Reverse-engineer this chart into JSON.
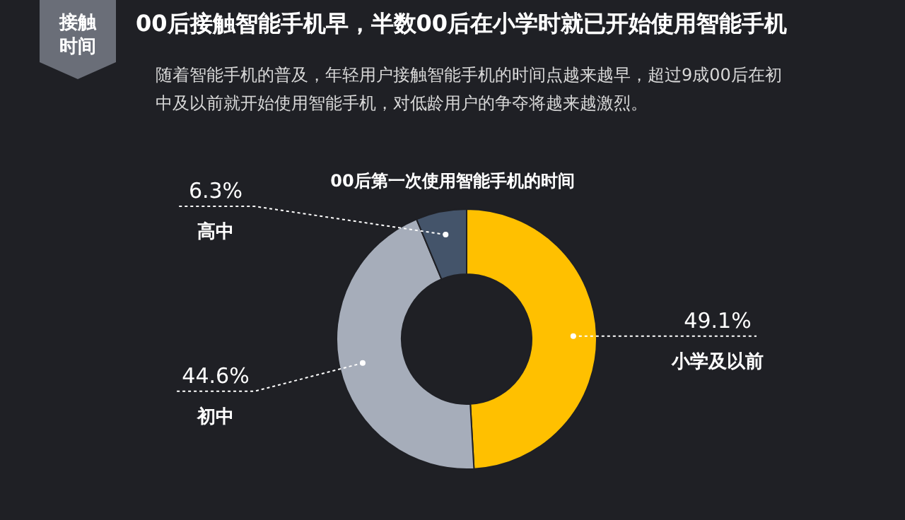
{
  "chart_data": {
    "type": "donut",
    "title": "00后接触智能手机早，半数00后在小学时就已开始使用智能手机",
    "subtitle": "随着智能手机的普及，年轻用户接触智能手机的时间点越来越早，超过9成00后在初中及以前就开始使用智能手机，对低龄用户的争夺将越来越激烈。",
    "annotations": [
      "接触时间",
      "00后第一次使用智能手机的时间"
    ],
    "categories": [
      "小学及以前",
      "初中",
      "高中"
    ],
    "values": [
      49.1,
      44.6,
      6.3
    ],
    "colors": [
      "#ffc000",
      "#a6adba",
      "#44546a"
    ],
    "value_labels": [
      "49.1%",
      "44.6%",
      "6.3%"
    ],
    "legend": false
  }
}
